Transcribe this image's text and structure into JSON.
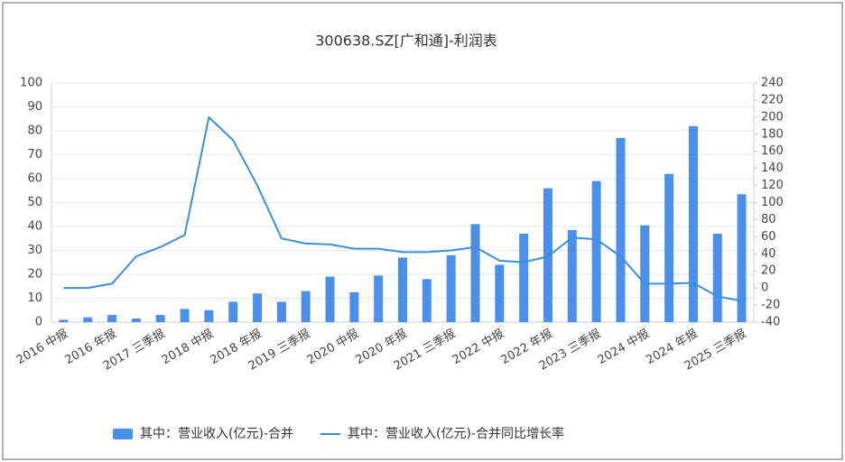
{
  "chart_data": {
    "type": "bar-line",
    "title": "300638.SZ[广和通]-利润表",
    "categories": [
      "2016 中报",
      null,
      "2016 年报",
      null,
      "2017 三季报",
      null,
      "2018 中报",
      null,
      "2018 年报",
      null,
      "2019 三季报",
      null,
      "2020 中报",
      null,
      "2020 年报",
      null,
      "2021 三季报",
      null,
      "2022 中报",
      null,
      "2022 年报",
      null,
      "2023 三季报",
      null,
      "2024 中报",
      null,
      "2024 年报",
      null,
      "2025 三季报"
    ],
    "series": [
      {
        "name": "其中：营业收入(亿元)-合并",
        "type": "bar",
        "color": "#4a8fec",
        "values": [
          1,
          2,
          3,
          1.5,
          3,
          5.5,
          5,
          8.5,
          12,
          8.5,
          13,
          19,
          12.5,
          19.5,
          27,
          18,
          28,
          41,
          24,
          37,
          56,
          38.5,
          59,
          77,
          40.5,
          62,
          82,
          37,
          53.5
        ]
      },
      {
        "name": "其中：营业收入(亿元)-合并同比增长率",
        "type": "line",
        "axis": "y2",
        "color": "#3a8fdc",
        "values": [
          0,
          0,
          5,
          37,
          48,
          62,
          200,
          173,
          120,
          58,
          52,
          51,
          46,
          46,
          42,
          42,
          44,
          48,
          32,
          30,
          37,
          59,
          57,
          37,
          5,
          5,
          6,
          -10,
          -15
        ]
      }
    ],
    "ylim": [
      0,
      100
    ],
    "yticks": [
      0,
      10,
      20,
      30,
      40,
      50,
      60,
      70,
      80,
      90,
      100
    ],
    "y2lim": [
      -40,
      240
    ],
    "y2ticks": [
      -40,
      -20,
      0,
      20,
      40,
      60,
      80,
      100,
      120,
      140,
      160,
      180,
      200,
      220,
      240
    ],
    "grid": true,
    "legend": "bottom"
  }
}
